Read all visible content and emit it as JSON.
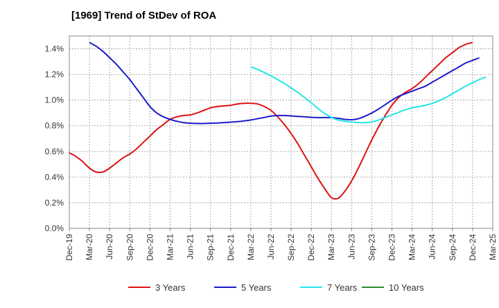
{
  "chart_data": {
    "type": "line",
    "title": "[1969]  Trend of StDev of ROA",
    "xlabel": "",
    "ylabel": "",
    "x_ticks": [
      "Dec-19",
      "Mar-20",
      "Jun-20",
      "Sep-20",
      "Dec-20",
      "Mar-21",
      "Jun-21",
      "Sep-21",
      "Dec-21",
      "Mar-22",
      "Jun-22",
      "Sep-22",
      "Dec-22",
      "Mar-23",
      "Jun-23",
      "Sep-23",
      "Dec-23",
      "Mar-24",
      "Jun-24",
      "Sep-24",
      "Dec-24",
      "Mar-25"
    ],
    "y_ticks": [
      "0.0%",
      "0.2%",
      "0.4%",
      "0.6%",
      "0.8%",
      "1.0%",
      "1.2%",
      "1.4%"
    ],
    "ylim": [
      0,
      1.5
    ],
    "y_unit": "%",
    "grid": true,
    "legend_position": "bottom",
    "series": [
      {
        "name": "3 Years",
        "color": "#dd1111",
        "points": [
          [
            "Dec-19",
            0.59
          ],
          [
            "Jan-20",
            0.56
          ],
          [
            "Feb-20",
            0.52
          ],
          [
            "Mar-20",
            0.47
          ],
          [
            "Apr-20",
            0.44
          ],
          [
            "May-20",
            0.44
          ],
          [
            "Jun-20",
            0.47
          ],
          [
            "Jul-20",
            0.51
          ],
          [
            "Aug-20",
            0.55
          ],
          [
            "Sep-20",
            0.58
          ],
          [
            "Oct-20",
            0.62
          ],
          [
            "Nov-20",
            0.67
          ],
          [
            "Dec-20",
            0.72
          ],
          [
            "Jan-21",
            0.77
          ],
          [
            "Feb-21",
            0.81
          ],
          [
            "Mar-21",
            0.85
          ],
          [
            "Apr-21",
            0.87
          ],
          [
            "May-21",
            0.88
          ],
          [
            "Jun-21",
            0.885
          ],
          [
            "Jul-21",
            0.9
          ],
          [
            "Aug-21",
            0.92
          ],
          [
            "Sep-21",
            0.94
          ],
          [
            "Oct-21",
            0.95
          ],
          [
            "Nov-21",
            0.955
          ],
          [
            "Dec-21",
            0.96
          ],
          [
            "Jan-22",
            0.97
          ],
          [
            "Feb-22",
            0.975
          ],
          [
            "Mar-22",
            0.975
          ],
          [
            "Apr-22",
            0.97
          ],
          [
            "May-22",
            0.95
          ],
          [
            "Jun-22",
            0.92
          ],
          [
            "Jul-22",
            0.87
          ],
          [
            "Aug-22",
            0.81
          ],
          [
            "Sep-22",
            0.74
          ],
          [
            "Oct-22",
            0.66
          ],
          [
            "Nov-22",
            0.57
          ],
          [
            "Dec-22",
            0.48
          ],
          [
            "Jan-23",
            0.39
          ],
          [
            "Feb-23",
            0.31
          ],
          [
            "Mar-23",
            0.24
          ],
          [
            "Apr-23",
            0.235
          ],
          [
            "May-23",
            0.29
          ],
          [
            "Jun-23",
            0.37
          ],
          [
            "Jul-23",
            0.47
          ],
          [
            "Aug-23",
            0.58
          ],
          [
            "Sep-23",
            0.69
          ],
          [
            "Oct-23",
            0.79
          ],
          [
            "Nov-23",
            0.88
          ],
          [
            "Dec-23",
            0.96
          ],
          [
            "Jan-24",
            1.02
          ],
          [
            "Feb-24",
            1.06
          ],
          [
            "Mar-24",
            1.09
          ],
          [
            "Apr-24",
            1.13
          ],
          [
            "May-24",
            1.18
          ],
          [
            "Jun-24",
            1.23
          ],
          [
            "Jul-24",
            1.28
          ],
          [
            "Aug-24",
            1.33
          ],
          [
            "Sep-24",
            1.37
          ],
          [
            "Oct-24",
            1.41
          ],
          [
            "Nov-24",
            1.435
          ],
          [
            "Dec-24",
            1.45
          ]
        ]
      },
      {
        "name": "5 Years",
        "color": "#1a1acc",
        "points": [
          [
            "Mar-20",
            1.45
          ],
          [
            "Apr-20",
            1.42
          ],
          [
            "May-20",
            1.38
          ],
          [
            "Jun-20",
            1.33
          ],
          [
            "Jul-20",
            1.28
          ],
          [
            "Aug-20",
            1.22
          ],
          [
            "Sep-20",
            1.16
          ],
          [
            "Oct-20",
            1.09
          ],
          [
            "Nov-20",
            1.02
          ],
          [
            "Dec-20",
            0.95
          ],
          [
            "Jan-21",
            0.9
          ],
          [
            "Feb-21",
            0.87
          ],
          [
            "Mar-21",
            0.85
          ],
          [
            "Apr-21",
            0.835
          ],
          [
            "May-21",
            0.825
          ],
          [
            "Jun-21",
            0.82
          ],
          [
            "Jul-21",
            0.818
          ],
          [
            "Aug-21",
            0.818
          ],
          [
            "Sep-21",
            0.82
          ],
          [
            "Oct-21",
            0.822
          ],
          [
            "Nov-21",
            0.825
          ],
          [
            "Dec-21",
            0.828
          ],
          [
            "Jan-22",
            0.832
          ],
          [
            "Feb-22",
            0.838
          ],
          [
            "Mar-22",
            0.845
          ],
          [
            "Apr-22",
            0.855
          ],
          [
            "May-22",
            0.865
          ],
          [
            "Jun-22",
            0.875
          ],
          [
            "Jul-22",
            0.88
          ],
          [
            "Aug-22",
            0.88
          ],
          [
            "Sep-22",
            0.877
          ],
          [
            "Oct-22",
            0.873
          ],
          [
            "Nov-22",
            0.87
          ],
          [
            "Dec-22",
            0.866
          ],
          [
            "Jan-23",
            0.864
          ],
          [
            "Feb-23",
            0.864
          ],
          [
            "Mar-23",
            0.864
          ],
          [
            "Apr-23",
            0.858
          ],
          [
            "May-23",
            0.85
          ],
          [
            "Jun-23",
            0.847
          ],
          [
            "Jul-23",
            0.855
          ],
          [
            "Aug-23",
            0.875
          ],
          [
            "Sep-23",
            0.9
          ],
          [
            "Oct-23",
            0.93
          ],
          [
            "Nov-23",
            0.965
          ],
          [
            "Dec-23",
            1.0
          ],
          [
            "Jan-24",
            1.03
          ],
          [
            "Feb-24",
            1.05
          ],
          [
            "Mar-24",
            1.07
          ],
          [
            "Apr-24",
            1.09
          ],
          [
            "May-24",
            1.11
          ],
          [
            "Jun-24",
            1.14
          ],
          [
            "Jul-24",
            1.17
          ],
          [
            "Aug-24",
            1.2
          ],
          [
            "Sep-24",
            1.23
          ],
          [
            "Oct-24",
            1.26
          ],
          [
            "Nov-24",
            1.29
          ],
          [
            "Dec-24",
            1.31
          ],
          [
            "Jan-25",
            1.33
          ]
        ]
      },
      {
        "name": "7 Years",
        "color": "#22e5e5",
        "points": [
          [
            "Mar-22",
            1.26
          ],
          [
            "Apr-22",
            1.24
          ],
          [
            "May-22",
            1.215
          ],
          [
            "Jun-22",
            1.19
          ],
          [
            "Jul-22",
            1.16
          ],
          [
            "Aug-22",
            1.13
          ],
          [
            "Sep-22",
            1.095
          ],
          [
            "Oct-22",
            1.06
          ],
          [
            "Nov-22",
            1.02
          ],
          [
            "Dec-22",
            0.98
          ],
          [
            "Jan-23",
            0.935
          ],
          [
            "Feb-23",
            0.895
          ],
          [
            "Mar-23",
            0.865
          ],
          [
            "Apr-23",
            0.845
          ],
          [
            "May-23",
            0.835
          ],
          [
            "Jun-23",
            0.83
          ],
          [
            "Jul-23",
            0.825
          ],
          [
            "Aug-23",
            0.825
          ],
          [
            "Sep-23",
            0.83
          ],
          [
            "Oct-23",
            0.845
          ],
          [
            "Nov-23",
            0.865
          ],
          [
            "Dec-23",
            0.885
          ],
          [
            "Jan-24",
            0.905
          ],
          [
            "Feb-24",
            0.925
          ],
          [
            "Mar-24",
            0.94
          ],
          [
            "Apr-24",
            0.95
          ],
          [
            "May-24",
            0.96
          ],
          [
            "Jun-24",
            0.975
          ],
          [
            "Jul-24",
            0.995
          ],
          [
            "Aug-24",
            1.02
          ],
          [
            "Sep-24",
            1.05
          ],
          [
            "Oct-24",
            1.08
          ],
          [
            "Nov-24",
            1.11
          ],
          [
            "Dec-24",
            1.135
          ],
          [
            "Jan-25",
            1.16
          ],
          [
            "Feb-25",
            1.18
          ]
        ]
      },
      {
        "name": "10 Years",
        "color": "#2a8a2a",
        "points": []
      }
    ]
  }
}
